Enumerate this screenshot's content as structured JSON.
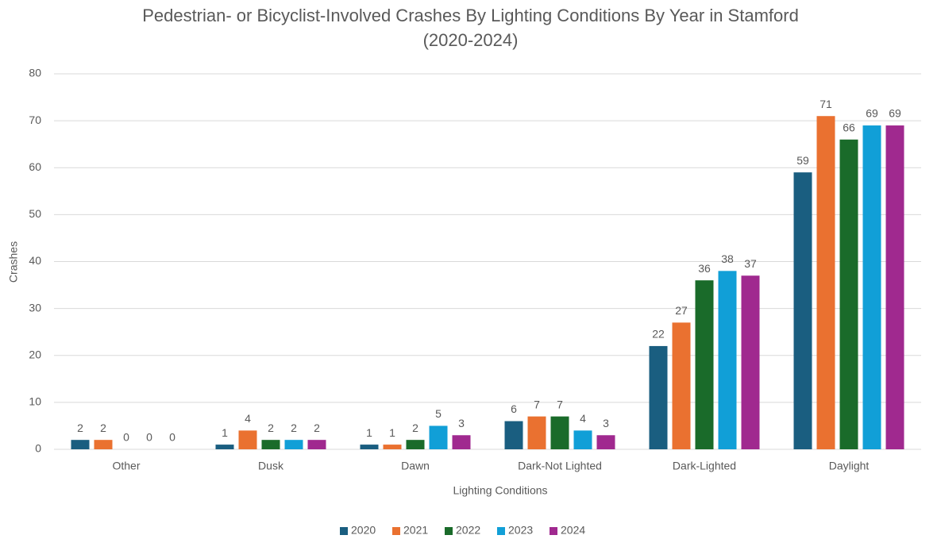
{
  "chart_data": {
    "type": "bar",
    "title": "Pedestrian- or Bicyclist-Involved Crashes By Lighting Conditions By Year in Stamford\n(2020-2024)",
    "x_label": "Lighting Conditions",
    "y_label": "Crashes",
    "categories": [
      "Other",
      "Dusk",
      "Dawn",
      "Dark-Not Lighted",
      "Dark-Lighted",
      "Daylight"
    ],
    "series": [
      {
        "name": "2020",
        "color": "#1a5e80",
        "values": [
          2,
          1,
          1,
          6,
          22,
          59
        ]
      },
      {
        "name": "2021",
        "color": "#ea7130",
        "values": [
          2,
          4,
          1,
          7,
          27,
          71
        ]
      },
      {
        "name": "2022",
        "color": "#1a6b2a",
        "values": [
          0,
          2,
          2,
          7,
          36,
          66
        ]
      },
      {
        "name": "2023",
        "color": "#119fd7",
        "values": [
          0,
          2,
          5,
          4,
          38,
          69
        ]
      },
      {
        "name": "2024",
        "color": "#a0298f",
        "values": [
          0,
          2,
          3,
          3,
          37,
          69
        ]
      }
    ],
    "ylim": [
      0,
      80
    ],
    "yticks": [
      0,
      10,
      20,
      30,
      40,
      50,
      60,
      70,
      80
    ],
    "grid": true,
    "legend": "bottom"
  }
}
